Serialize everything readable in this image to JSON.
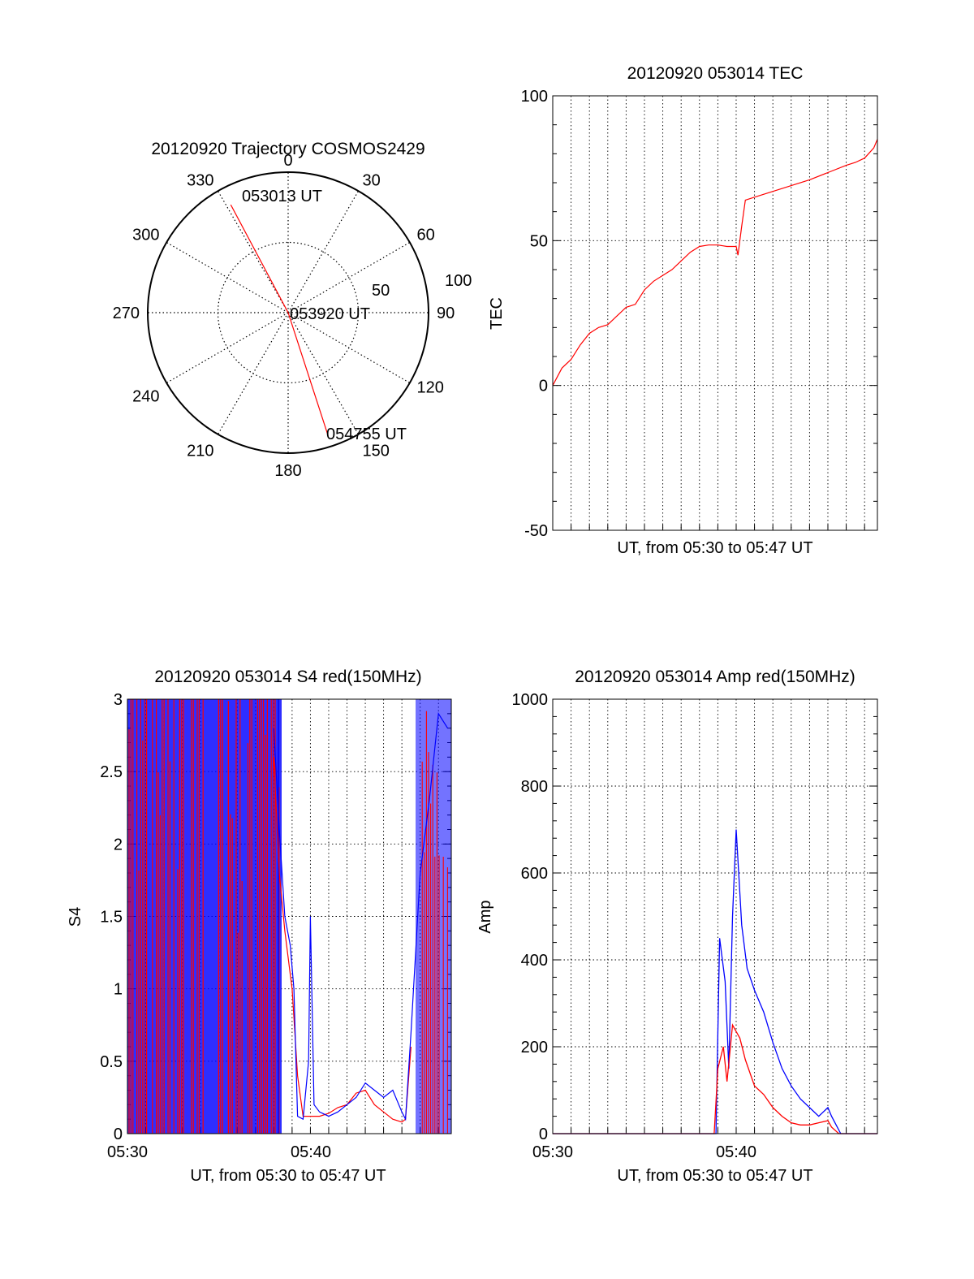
{
  "colors": {
    "red": "#ff0000",
    "blue": "#0000ff",
    "axis": "#000000"
  },
  "chart_data": [
    {
      "id": "trajectory",
      "type": "polar",
      "title": "20120920 Trajectory COSMOS2429",
      "angle_labels": [
        "0",
        "30",
        "60",
        "90",
        "120",
        "150",
        "180",
        "210",
        "240",
        "270",
        "300",
        "330"
      ],
      "radial_labels": [
        "50",
        "100"
      ],
      "rlim": [
        0,
        100
      ],
      "grid": true,
      "series": [
        {
          "color": "#ff0000",
          "points": [
            {
              "az": 332,
              "r": 87
            },
            {
              "az": 0,
              "r": 0
            },
            {
              "az": 162,
              "r": 92
            }
          ]
        }
      ],
      "annotations": [
        {
          "text": "053013 UT",
          "az": 332,
          "r": 87
        },
        {
          "text": "053920 UT",
          "az": 0,
          "r": 0
        },
        {
          "text": "054755 UT",
          "az": 162,
          "r": 92
        }
      ]
    },
    {
      "id": "tec",
      "type": "line",
      "title": "20120920 053014 TEC",
      "xlabel": "UT, from 05:30 to 05:47 UT",
      "ylabel": "TEC",
      "xlim_min": [
        0,
        17.7
      ],
      "ylim": [
        -50,
        100
      ],
      "yticks": [
        "-50",
        "0",
        "50",
        "100"
      ],
      "xgrid_every_min": 1,
      "grid": true,
      "series": [
        {
          "color": "#ff0000",
          "x_min": [
            0,
            0.5,
            1.0,
            1.5,
            2.0,
            2.5,
            3.0,
            3.5,
            4.0,
            4.5,
            5.0,
            5.5,
            6.0,
            6.5,
            7.0,
            7.5,
            8.0,
            8.5,
            9.0,
            9.5,
            10.0,
            10.1,
            10.3,
            10.5,
            11,
            12,
            13,
            14,
            15,
            16,
            16.5,
            17,
            17.5,
            17.7
          ],
          "y": [
            0,
            6,
            9,
            14,
            18,
            20,
            21,
            24,
            27,
            28,
            33,
            36,
            38,
            40,
            43,
            46,
            48,
            48.5,
            48.5,
            48,
            48,
            45,
            55,
            64,
            65,
            67,
            69,
            71,
            73.5,
            76,
            77,
            78.5,
            82,
            85
          ]
        }
      ]
    },
    {
      "id": "s4",
      "type": "line",
      "title": "20120920 053014 S4 red(150MHz)",
      "xlabel": "UT, from 05:30 to 05:47 UT",
      "ylabel": "S4",
      "xlim_min": [
        0,
        17.7
      ],
      "ylim": [
        0,
        3
      ],
      "yticks": [
        "0",
        "0.5",
        "1",
        "1.5",
        "2",
        "2.5",
        "3"
      ],
      "xticks": [
        {
          "min": 0,
          "label": "05:30"
        },
        {
          "min": 10,
          "label": "05:40"
        }
      ],
      "xgrid_every_min": 1,
      "grid": true,
      "series": [
        {
          "color": "#ff0000",
          "x_min": [
            8.0,
            8.3,
            8.6,
            8.9,
            9.0,
            9.3,
            9.6,
            10.0,
            10.5,
            11.0,
            11.5,
            12.0,
            12.5,
            13.0,
            13.5,
            14.0,
            14.5,
            15.0,
            15.2,
            15.5
          ],
          "y": [
            2.6,
            1.8,
            1.4,
            1.1,
            1.0,
            0.4,
            0.12,
            0.12,
            0.12,
            0.14,
            0.18,
            0.2,
            0.28,
            0.3,
            0.2,
            0.15,
            0.1,
            0.08,
            0.1,
            0.6
          ]
        },
        {
          "color": "#0000ff",
          "x_min": [
            8.0,
            8.3,
            8.6,
            8.9,
            9.1,
            9.3,
            9.6,
            9.9,
            10.0,
            10.2,
            10.5,
            11.0,
            11.5,
            12.0,
            12.5,
            13.0,
            13.5,
            14.0,
            14.5,
            15.0,
            15.2,
            15.5,
            16.0,
            16.5,
            17.0,
            17.5
          ],
          "y": [
            2.8,
            2.1,
            1.5,
            1.3,
            1.0,
            0.12,
            0.1,
            0.5,
            1.5,
            0.2,
            0.15,
            0.12,
            0.15,
            0.2,
            0.25,
            0.35,
            0.3,
            0.25,
            0.3,
            0.15,
            0.1,
            0.7,
            1.8,
            2.3,
            2.9,
            2.8
          ]
        }
      ]
    },
    {
      "id": "amp",
      "type": "line",
      "title": "20120920 053014 Amp red(150MHz)",
      "xlabel": "UT, from 05:30 to 05:47 UT",
      "ylabel": "Amp",
      "xlim_min": [
        0,
        17.7
      ],
      "ylim": [
        0,
        1000
      ],
      "yticks": [
        "0",
        "200",
        "400",
        "600",
        "800",
        "1000"
      ],
      "xticks": [
        {
          "min": 0,
          "label": "05:30"
        },
        {
          "min": 10,
          "label": "05:40"
        }
      ],
      "xgrid_every_min": 1,
      "grid": true,
      "series": [
        {
          "color": "#ff0000",
          "x_min": [
            0,
            8.8,
            9.0,
            9.3,
            9.5,
            9.8,
            10.2,
            10.5,
            11.0,
            11.5,
            12.0,
            12.5,
            13.0,
            13.5,
            14.0,
            14.5,
            15.0,
            15.2,
            15.6,
            17.7
          ],
          "y": [
            0,
            0,
            150,
            200,
            120,
            250,
            220,
            170,
            110,
            90,
            60,
            40,
            25,
            20,
            20,
            25,
            30,
            15,
            0,
            0
          ]
        },
        {
          "color": "#0000ff",
          "x_min": [
            0,
            8.9,
            9.1,
            9.4,
            9.6,
            9.8,
            10.0,
            10.3,
            10.6,
            11.0,
            11.5,
            12.0,
            12.5,
            13.0,
            13.5,
            14.0,
            14.5,
            15.0,
            15.2,
            15.7,
            17.7
          ],
          "y": [
            0,
            0,
            450,
            350,
            150,
            500,
            700,
            480,
            380,
            330,
            280,
            210,
            150,
            110,
            80,
            60,
            40,
            60,
            40,
            0,
            0
          ]
        }
      ]
    }
  ]
}
